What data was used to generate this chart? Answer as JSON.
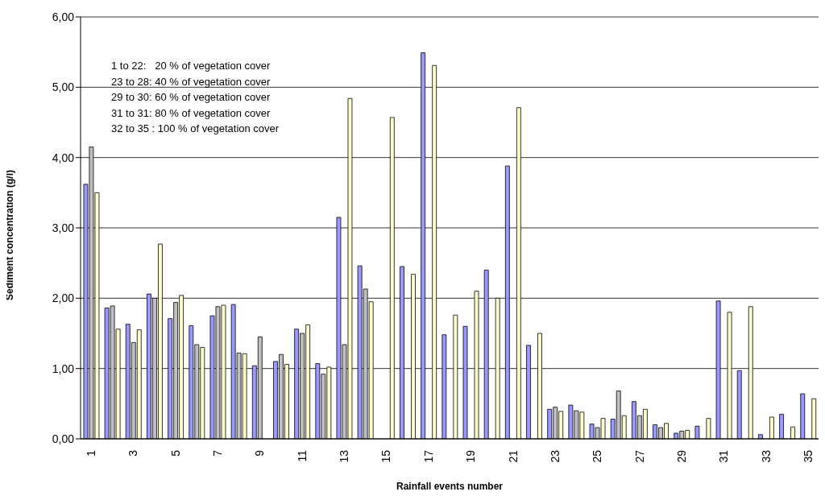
{
  "chart_data": {
    "type": "bar",
    "xlabel": "Rainfall events number",
    "ylabel": "Sediment concentration (g/l)",
    "categories": [
      "1",
      null,
      "3",
      null,
      "5",
      null,
      "7",
      null,
      "9",
      null,
      "11",
      null,
      "13",
      null,
      "15",
      null,
      "17",
      null,
      "19",
      null,
      "21",
      null,
      "23",
      null,
      "25",
      null,
      "27",
      null,
      "29",
      null,
      "31",
      null,
      "33",
      null,
      "35"
    ],
    "series": [
      {
        "color": "#9999ff",
        "values": [
          3.62,
          1.86,
          1.63,
          2.06,
          1.71,
          1.61,
          1.75,
          1.91,
          1.04,
          1.1,
          1.56,
          1.07,
          3.15,
          2.46,
          null,
          2.45,
          5.49,
          1.48,
          1.6,
          2.4,
          3.88,
          1.33,
          0.42,
          0.48,
          0.21,
          0.28,
          0.53,
          0.2,
          0.08,
          0.18,
          1.96,
          0.97,
          0.06,
          0.35,
          0.64
        ]
      },
      {
        "color": "#c0c0c0",
        "values": [
          4.15,
          1.89,
          1.37,
          2.0,
          1.94,
          1.34,
          1.88,
          1.22,
          1.45,
          1.2,
          1.5,
          0.92,
          1.34,
          2.13,
          null,
          null,
          null,
          null,
          null,
          null,
          null,
          null,
          0.45,
          0.4,
          0.16,
          0.68,
          0.33,
          0.16,
          0.11,
          null,
          null,
          null,
          null,
          null,
          null
        ]
      },
      {
        "color": "#ffffcc",
        "values": [
          3.5,
          1.56,
          1.55,
          2.77,
          2.04,
          1.3,
          1.9,
          1.21,
          null,
          1.06,
          1.62,
          1.02,
          4.84,
          1.95,
          4.57,
          2.34,
          5.31,
          1.76,
          2.1,
          2.0,
          4.71,
          1.5,
          0.39,
          0.38,
          0.29,
          0.33,
          0.42,
          0.22,
          0.12,
          0.29,
          1.8,
          1.88,
          0.31,
          0.17,
          0.57
        ]
      }
    ],
    "ylim": [
      0,
      6
    ],
    "yticks": [
      {
        "value": 0,
        "label": "0,00"
      },
      {
        "value": 1,
        "label": "1,00"
      },
      {
        "value": 2,
        "label": "2,00"
      },
      {
        "value": 3,
        "label": "3,00"
      },
      {
        "value": 4,
        "label": "4,00"
      },
      {
        "value": 5,
        "label": "5,00"
      },
      {
        "value": 6,
        "label": "6,00"
      }
    ],
    "grid": "y",
    "legend": false,
    "annotations": [
      "1 to 22:   20 % of vegetation cover",
      "23 to 28: 40 % of vegetation cover",
      "29 to 30: 60 % of vegetation cover",
      "31 to 31: 80 % of vegetation cover",
      "32 to 35 : 100 % of vegetation cover"
    ]
  }
}
